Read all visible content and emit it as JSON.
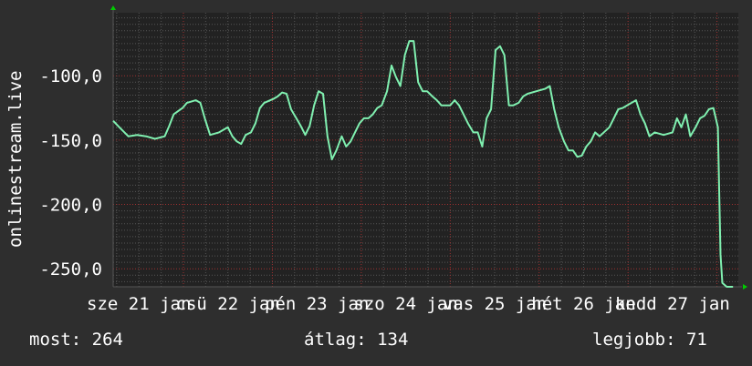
{
  "chart_data": {
    "type": "line",
    "ylabel": "onlinestream.live",
    "ylim": [
      -264,
      -51
    ],
    "xlim": [
      21.21,
      28.24
    ],
    "x_unit": "day of January",
    "grid": true,
    "y_ticks": [
      -100,
      -150,
      -200,
      -250
    ],
    "y_tick_labels": [
      "-100,0",
      "-150,0",
      "-200,0",
      "-250,0"
    ],
    "x_tick_days": [
      21,
      22,
      23,
      24,
      25,
      26,
      27
    ],
    "x_tick_labels": [
      "sze 21 jan",
      "csü 22 jan",
      "pén 23 jan",
      "szo 24 jan",
      "vas 25 jan",
      "hét 26 jan",
      "kedd 27 jan"
    ],
    "colors": {
      "background": "#2e2e2e",
      "plot": "#222222",
      "line": "#80f0b0",
      "major_grid": "#a03030",
      "minor_grid": "#555555",
      "arrow": "#00cc00"
    },
    "series": [
      {
        "points": [
          [
            21.21,
            -135
          ],
          [
            21.28,
            -140
          ],
          [
            21.38,
            -147
          ],
          [
            21.48,
            -146
          ],
          [
            21.58,
            -147
          ],
          [
            21.68,
            -149
          ],
          [
            21.79,
            -147
          ],
          [
            21.84,
            -139
          ],
          [
            21.89,
            -130
          ],
          [
            21.99,
            -125
          ],
          [
            22.04,
            -121
          ],
          [
            22.14,
            -119
          ],
          [
            22.19,
            -121
          ],
          [
            22.24,
            -133
          ],
          [
            22.3,
            -146
          ],
          [
            22.4,
            -144
          ],
          [
            22.5,
            -140
          ],
          [
            22.55,
            -147
          ],
          [
            22.6,
            -151
          ],
          [
            22.65,
            -153
          ],
          [
            22.7,
            -146
          ],
          [
            22.76,
            -144
          ],
          [
            22.81,
            -137
          ],
          [
            22.86,
            -125
          ],
          [
            22.91,
            -121
          ],
          [
            23.01,
            -118
          ],
          [
            23.06,
            -116
          ],
          [
            23.11,
            -113
          ],
          [
            23.16,
            -114
          ],
          [
            23.21,
            -126
          ],
          [
            23.27,
            -133
          ],
          [
            23.32,
            -139
          ],
          [
            23.37,
            -146
          ],
          [
            23.42,
            -139
          ],
          [
            23.47,
            -123
          ],
          [
            23.52,
            -112
          ],
          [
            23.57,
            -114
          ],
          [
            23.62,
            -147
          ],
          [
            23.67,
            -165
          ],
          [
            23.72,
            -158
          ],
          [
            23.78,
            -147
          ],
          [
            23.83,
            -155
          ],
          [
            23.88,
            -151
          ],
          [
            23.93,
            -144
          ],
          [
            23.98,
            -137
          ],
          [
            24.03,
            -133
          ],
          [
            24.08,
            -133
          ],
          [
            24.13,
            -130
          ],
          [
            24.18,
            -125
          ],
          [
            24.23,
            -123
          ],
          [
            24.29,
            -112
          ],
          [
            24.34,
            -92
          ],
          [
            24.39,
            -101
          ],
          [
            24.44,
            -108
          ],
          [
            24.49,
            -84
          ],
          [
            24.54,
            -73
          ],
          [
            24.59,
            -73
          ],
          [
            24.64,
            -105
          ],
          [
            24.69,
            -112
          ],
          [
            24.74,
            -112
          ],
          [
            24.8,
            -116
          ],
          [
            24.85,
            -119
          ],
          [
            24.9,
            -123
          ],
          [
            24.95,
            -123
          ],
          [
            25.0,
            -123
          ],
          [
            25.05,
            -119
          ],
          [
            25.1,
            -123
          ],
          [
            25.15,
            -130
          ],
          [
            25.2,
            -137
          ],
          [
            25.26,
            -144
          ],
          [
            25.31,
            -144
          ],
          [
            25.36,
            -155
          ],
          [
            25.41,
            -133
          ],
          [
            25.46,
            -126
          ],
          [
            25.51,
            -80
          ],
          [
            25.56,
            -77
          ],
          [
            25.61,
            -84
          ],
          [
            25.66,
            -123
          ],
          [
            25.71,
            -123
          ],
          [
            25.77,
            -121
          ],
          [
            25.82,
            -116
          ],
          [
            25.87,
            -114
          ],
          [
            25.97,
            -112
          ],
          [
            26.07,
            -110
          ],
          [
            26.12,
            -108
          ],
          [
            26.17,
            -126
          ],
          [
            26.22,
            -140
          ],
          [
            26.28,
            -151
          ],
          [
            26.33,
            -158
          ],
          [
            26.38,
            -158
          ],
          [
            26.43,
            -163
          ],
          [
            26.48,
            -162
          ],
          [
            26.53,
            -155
          ],
          [
            26.58,
            -151
          ],
          [
            26.63,
            -144
          ],
          [
            26.68,
            -147
          ],
          [
            26.79,
            -140
          ],
          [
            26.84,
            -133
          ],
          [
            26.89,
            -126
          ],
          [
            26.94,
            -125
          ],
          [
            26.99,
            -123
          ],
          [
            27.09,
            -119
          ],
          [
            27.14,
            -130
          ],
          [
            27.19,
            -137
          ],
          [
            27.24,
            -147
          ],
          [
            27.3,
            -144
          ],
          [
            27.4,
            -146
          ],
          [
            27.5,
            -144
          ],
          [
            27.55,
            -133
          ],
          [
            27.6,
            -140
          ],
          [
            27.65,
            -130
          ],
          [
            27.7,
            -147
          ],
          [
            27.76,
            -140
          ],
          [
            27.81,
            -133
          ],
          [
            27.86,
            -131
          ],
          [
            27.91,
            -126
          ],
          [
            27.96,
            -125
          ],
          [
            28.01,
            -140
          ],
          [
            28.04,
            -239
          ],
          [
            28.06,
            -261
          ],
          [
            28.11,
            -264
          ],
          [
            28.18,
            -264
          ]
        ]
      }
    ]
  },
  "legend": {
    "current": "most: 264",
    "average": "átlag: 134",
    "best": "legjobb: 71"
  }
}
